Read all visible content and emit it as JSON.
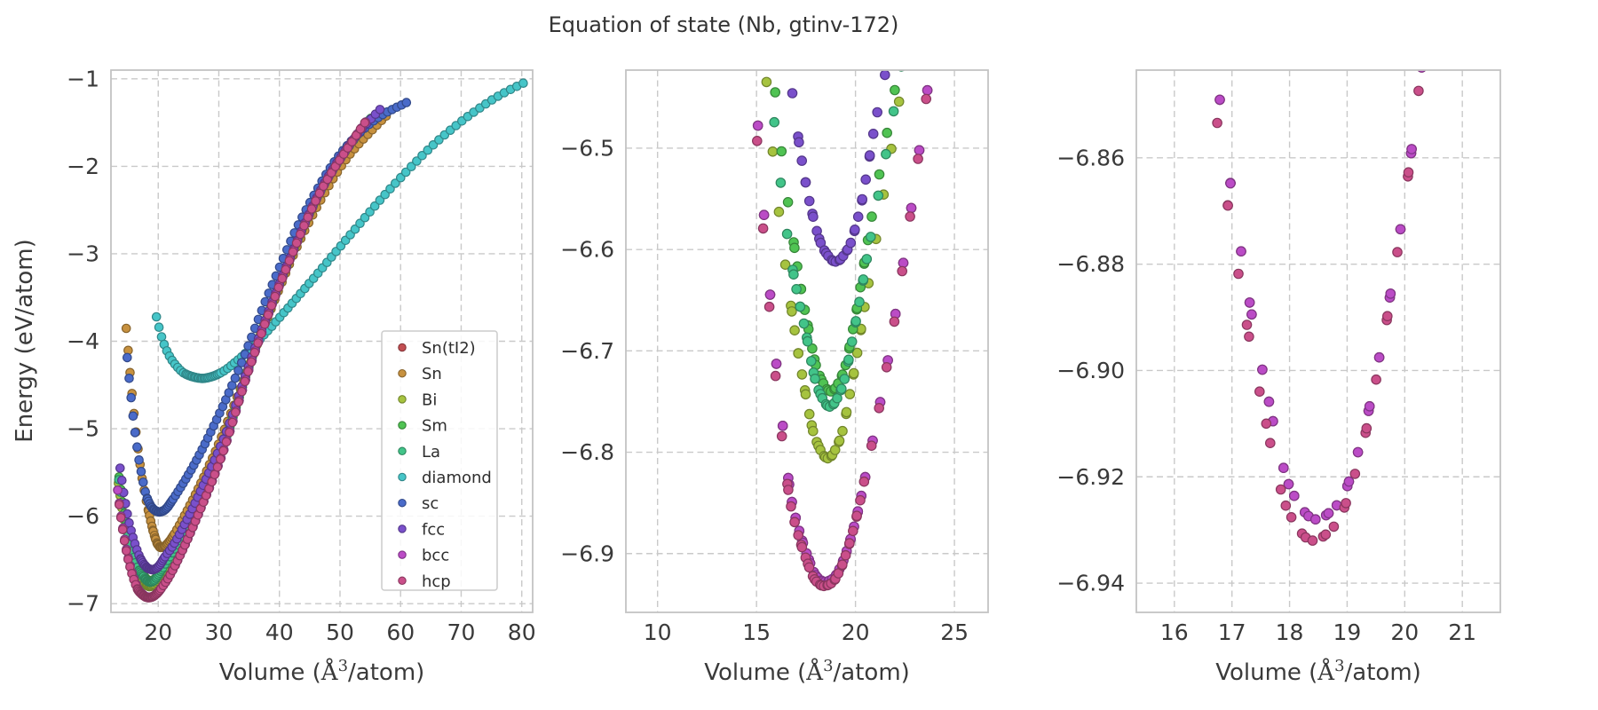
{
  "chart_data": {
    "type": "scatter",
    "title": "Equation of state (Nb, gtinv-172)",
    "ylabel": "Energy (eV/atom)",
    "xlabel": "Volume (Å³/atom)",
    "xlabel_parts": {
      "prefix": "Volume (",
      "symbol": "Å",
      "exponent": "3",
      "suffix": "/atom)"
    },
    "grid": {
      "on": true,
      "style": "dashed",
      "color": "#c9c9c9"
    },
    "spine_color": "#c3c3c3",
    "marker_edge_darken": 0.68,
    "sampling": {
      "coarse_scale_start": 0.897,
      "coarse_scale_step": 0.0063,
      "fine_ratio_range": [
        0.9,
        1.1
      ],
      "fine_ratio_step": 0.01,
      "note": "volumes sampled at V = v0*s^3 on the coarse lattice-scale grid plus a fine grid within +/-10% of v0"
    },
    "panels": [
      {
        "name": "overview",
        "xlim": [
          12.2,
          81.8
        ],
        "ylim": [
          -7.1,
          -0.9
        ],
        "xticks": [
          20,
          30,
          40,
          50,
          60,
          70,
          80
        ],
        "xtick_labels": [
          "20",
          "30",
          "40",
          "50",
          "60",
          "70",
          "80"
        ],
        "yticks": [
          -1,
          -2,
          -3,
          -4,
          -5,
          -6,
          -7
        ],
        "ytick_labels": [
          "−1",
          "−2",
          "−3",
          "−4",
          "−5",
          "−6",
          "−7"
        ],
        "show_legend": true,
        "show_ylabel": true
      },
      {
        "name": "zoom-minima",
        "xlim": [
          8.4,
          26.7
        ],
        "ylim": [
          -6.958,
          -6.423
        ],
        "xticks": [
          10,
          15,
          20,
          25
        ],
        "xtick_labels": [
          "10",
          "15",
          "20",
          "25"
        ],
        "yticks": [
          -6.5,
          -6.6,
          -6.7,
          -6.8,
          -6.9
        ],
        "ytick_labels": [
          "−6.5",
          "−6.6",
          "−6.7",
          "−6.8",
          "−6.9"
        ],
        "show_legend": false,
        "show_ylabel": false
      },
      {
        "name": "zoom-bcc-hcp",
        "xlim": [
          15.34,
          21.66
        ],
        "ylim": [
          -6.9455,
          -6.8435
        ],
        "xticks": [
          16,
          17,
          18,
          19,
          20,
          21
        ],
        "xtick_labels": [
          "16",
          "17",
          "18",
          "19",
          "20",
          "21"
        ],
        "yticks": [
          -6.86,
          -6.88,
          -6.9,
          -6.92,
          -6.94
        ],
        "ytick_labels": [
          "−6.86",
          "−6.88",
          "−6.90",
          "−6.92",
          "−6.94"
        ],
        "show_legend": false,
        "show_ylabel": false
      }
    ],
    "series": [
      {
        "name": "Sn(tI2)",
        "color": "#c24e52",
        "v0": 18.45,
        "e_min": -6.928,
        "anchors": [
          [
            13.31,
            -5.7
          ],
          [
            14.05,
            -6.08
          ],
          [
            14.77,
            -6.38
          ],
          [
            15.67,
            -6.64
          ],
          [
            16.25,
            -6.76
          ],
          [
            16.75,
            -6.845
          ],
          [
            17.15,
            -6.877
          ],
          [
            17.55,
            -6.901
          ],
          [
            18.05,
            -6.923
          ],
          [
            18.45,
            -6.928
          ],
          [
            18.85,
            -6.925
          ],
          [
            19.25,
            -6.913
          ],
          [
            19.65,
            -6.892
          ],
          [
            20.05,
            -6.864
          ],
          [
            20.55,
            -6.819
          ],
          [
            21.76,
            -6.695
          ],
          [
            23.96,
            -6.395
          ],
          [
            26.76,
            -5.955
          ],
          [
            30.46,
            -5.315
          ],
          [
            35.06,
            -4.305
          ],
          [
            40.56,
            -3.265
          ],
          [
            46.96,
            -2.265
          ],
          [
            52.0,
            -1.715
          ],
          [
            54.8,
            -1.44
          ]
        ]
      },
      {
        "name": "Sn",
        "color": "#c7913f",
        "v0": 20.4,
        "e_min": -6.358,
        "anchors": [
          [
            14.72,
            -3.85
          ],
          [
            15.54,
            -4.5
          ],
          [
            16.35,
            -5.05
          ],
          [
            17.33,
            -5.56
          ],
          [
            18.43,
            -5.95
          ],
          [
            19.33,
            -6.21
          ],
          [
            19.9,
            -6.32
          ],
          [
            20.4,
            -6.358
          ],
          [
            21.0,
            -6.345
          ],
          [
            21.7,
            -6.3
          ],
          [
            22.5,
            -6.22
          ],
          [
            24.06,
            -6.03
          ],
          [
            26.42,
            -5.71
          ],
          [
            29.43,
            -5.26
          ],
          [
            33.41,
            -4.57
          ],
          [
            38.46,
            -3.66
          ],
          [
            44.36,
            -2.71
          ],
          [
            51.23,
            -1.9
          ],
          [
            55.8,
            -1.55
          ],
          [
            58.3,
            -1.38
          ]
        ]
      },
      {
        "name": "Bi",
        "color": "#a6c33f",
        "v0": 18.6,
        "e_min": -6.806,
        "anchors": [
          [
            13.42,
            -5.62
          ],
          [
            14.16,
            -5.98
          ],
          [
            14.9,
            -6.27
          ],
          [
            15.8,
            -6.5
          ],
          [
            16.6,
            -6.636
          ],
          [
            17.4,
            -6.734
          ],
          [
            18.0,
            -6.788
          ],
          [
            18.6,
            -6.806
          ],
          [
            19.2,
            -6.788
          ],
          [
            19.8,
            -6.734
          ],
          [
            20.6,
            -6.64
          ],
          [
            21.9,
            -6.49
          ],
          [
            24.1,
            -6.22
          ],
          [
            26.9,
            -5.82
          ],
          [
            30.65,
            -5.22
          ],
          [
            35.25,
            -4.24
          ],
          [
            40.75,
            -3.22
          ],
          [
            47.15,
            -2.24
          ],
          [
            52.6,
            -1.66
          ],
          [
            55.4,
            -1.42
          ]
        ]
      },
      {
        "name": "Sm",
        "color": "#50c353",
        "v0": 18.75,
        "e_min": -6.74,
        "anchors": [
          [
            13.53,
            -5.55
          ],
          [
            14.27,
            -5.91
          ],
          [
            15.02,
            -6.2
          ],
          [
            15.92,
            -6.44
          ],
          [
            16.75,
            -6.576
          ],
          [
            17.55,
            -6.671
          ],
          [
            18.15,
            -6.723
          ],
          [
            18.75,
            -6.74
          ],
          [
            19.35,
            -6.723
          ],
          [
            19.95,
            -6.671
          ],
          [
            20.75,
            -6.576
          ],
          [
            22.1,
            -6.43
          ],
          [
            24.3,
            -6.17
          ],
          [
            27.1,
            -5.77
          ],
          [
            30.8,
            -5.18
          ],
          [
            35.4,
            -4.21
          ],
          [
            40.9,
            -3.2
          ],
          [
            47.3,
            -2.22
          ],
          [
            52.8,
            -1.65
          ],
          [
            55.6,
            -1.41
          ]
        ]
      },
      {
        "name": "La",
        "color": "#42c489",
        "v0": 18.7,
        "e_min": -6.755,
        "anchors": [
          [
            13.49,
            -5.58
          ],
          [
            14.23,
            -5.94
          ],
          [
            14.98,
            -6.23
          ],
          [
            15.88,
            -6.47
          ],
          [
            16.7,
            -6.605
          ],
          [
            17.5,
            -6.683
          ],
          [
            18.1,
            -6.737
          ],
          [
            18.7,
            -6.755
          ],
          [
            19.3,
            -6.737
          ],
          [
            19.9,
            -6.683
          ],
          [
            20.7,
            -6.595
          ],
          [
            22.05,
            -6.45
          ],
          [
            24.25,
            -6.19
          ],
          [
            27.05,
            -5.79
          ],
          [
            30.75,
            -5.19
          ],
          [
            35.35,
            -4.215
          ],
          [
            40.85,
            -3.21
          ],
          [
            47.25,
            -2.23
          ],
          [
            52.7,
            -1.655
          ],
          [
            55.5,
            -1.415
          ]
        ]
      },
      {
        "name": "diamond",
        "color": "#46c5c8",
        "v0": 27.3,
        "e_min": -4.425,
        "anchors": [
          [
            19.7,
            -3.72
          ],
          [
            20.55,
            -3.95
          ],
          [
            21.55,
            -4.13
          ],
          [
            22.85,
            -4.27
          ],
          [
            24.25,
            -4.365
          ],
          [
            25.65,
            -4.405
          ],
          [
            26.7,
            -4.421
          ],
          [
            27.3,
            -4.425
          ],
          [
            28.25,
            -4.416
          ],
          [
            29.35,
            -4.392
          ],
          [
            30.75,
            -4.343
          ],
          [
            33.05,
            -4.22
          ],
          [
            36.45,
            -4.0
          ],
          [
            40.65,
            -3.68
          ],
          [
            45.65,
            -3.28
          ],
          [
            51.85,
            -2.77
          ],
          [
            59.05,
            -2.2
          ],
          [
            67.45,
            -1.63
          ],
          [
            76.05,
            -1.2
          ],
          [
            80.5,
            -1.04
          ]
        ]
      },
      {
        "name": "sc",
        "color": "#4a6bc9",
        "v0": 20.2,
        "e_min": -5.952,
        "anchors": [
          [
            14.58,
            -3.95
          ],
          [
            15.38,
            -4.55
          ],
          [
            16.18,
            -5.05
          ],
          [
            17.15,
            -5.48
          ],
          [
            18.2,
            -5.8
          ],
          [
            19.0,
            -5.905
          ],
          [
            19.6,
            -5.94
          ],
          [
            20.2,
            -5.952
          ],
          [
            20.8,
            -5.94
          ],
          [
            21.4,
            -5.908
          ],
          [
            22.2,
            -5.83
          ],
          [
            23.8,
            -5.66
          ],
          [
            26.16,
            -5.38
          ],
          [
            29.14,
            -4.97
          ],
          [
            33.08,
            -4.36
          ],
          [
            38.08,
            -3.48
          ],
          [
            43.92,
            -2.56
          ],
          [
            50.72,
            -1.8
          ],
          [
            56.8,
            -1.42
          ],
          [
            61.0,
            -1.27
          ]
        ]
      },
      {
        "name": "fcc",
        "color": "#7a50cb",
        "v0": 19.0,
        "e_min": -6.612,
        "anchors": [
          [
            13.71,
            -5.45
          ],
          [
            14.46,
            -5.8
          ],
          [
            15.22,
            -6.08
          ],
          [
            16.13,
            -6.31
          ],
          [
            17.0,
            -6.475
          ],
          [
            17.8,
            -6.563
          ],
          [
            18.4,
            -6.6
          ],
          [
            19.0,
            -6.612
          ],
          [
            19.6,
            -6.6
          ],
          [
            20.2,
            -6.563
          ],
          [
            21.0,
            -6.475
          ],
          [
            22.4,
            -6.34
          ],
          [
            24.6,
            -6.06
          ],
          [
            27.4,
            -5.65
          ],
          [
            31.1,
            -5.06
          ],
          [
            35.8,
            -4.11
          ],
          [
            41.3,
            -3.12
          ],
          [
            47.7,
            -2.16
          ],
          [
            53.4,
            -1.59
          ],
          [
            56.6,
            -1.35
          ]
        ]
      },
      {
        "name": "bcc",
        "color": "#bb4cc6",
        "v0": 18.45,
        "e_min": -6.928,
        "anchors": [
          [
            13.31,
            -5.7
          ],
          [
            14.05,
            -6.08
          ],
          [
            14.77,
            -6.38
          ],
          [
            15.67,
            -6.64
          ],
          [
            16.25,
            -6.76
          ],
          [
            16.75,
            -6.845
          ],
          [
            17.15,
            -6.877
          ],
          [
            17.55,
            -6.901
          ],
          [
            18.05,
            -6.923
          ],
          [
            18.45,
            -6.928
          ],
          [
            18.85,
            -6.925
          ],
          [
            19.25,
            -6.913
          ],
          [
            19.65,
            -6.892
          ],
          [
            20.05,
            -6.864
          ],
          [
            20.55,
            -6.819
          ],
          [
            21.76,
            -6.695
          ],
          [
            23.96,
            -6.395
          ],
          [
            26.76,
            -5.955
          ],
          [
            30.46,
            -5.315
          ],
          [
            35.06,
            -4.305
          ],
          [
            40.56,
            -3.265
          ],
          [
            46.96,
            -2.265
          ],
          [
            52.0,
            -1.715
          ],
          [
            54.8,
            -1.44
          ]
        ]
      },
      {
        "name": "hcp",
        "color": "#ca4f8a",
        "v0": 18.4,
        "e_min": -6.932,
        "anchors": [
          [
            13.28,
            -5.72
          ],
          [
            14.02,
            -6.1
          ],
          [
            14.74,
            -6.4
          ],
          [
            15.64,
            -6.655
          ],
          [
            16.2,
            -6.77
          ],
          [
            16.7,
            -6.849
          ],
          [
            17.1,
            -6.881
          ],
          [
            17.5,
            -6.905
          ],
          [
            18.0,
            -6.927
          ],
          [
            18.4,
            -6.932
          ],
          [
            18.8,
            -6.929
          ],
          [
            19.2,
            -6.917
          ],
          [
            19.6,
            -6.896
          ],
          [
            20.0,
            -6.868
          ],
          [
            20.5,
            -6.823
          ],
          [
            21.72,
            -6.7
          ],
          [
            23.92,
            -6.4
          ],
          [
            26.72,
            -5.96
          ],
          [
            30.42,
            -5.32
          ],
          [
            35.02,
            -4.31
          ],
          [
            40.52,
            -3.27
          ],
          [
            46.92,
            -2.27
          ],
          [
            51.96,
            -1.72
          ],
          [
            54.6,
            -1.45
          ]
        ]
      }
    ],
    "legend": {
      "items": [
        "Sn(tI2)",
        "Sn",
        "Bi",
        "Sm",
        "La",
        "diamond",
        "sc",
        "fcc",
        "bcc",
        "hcp"
      ],
      "position": "lower right of first panel"
    }
  }
}
